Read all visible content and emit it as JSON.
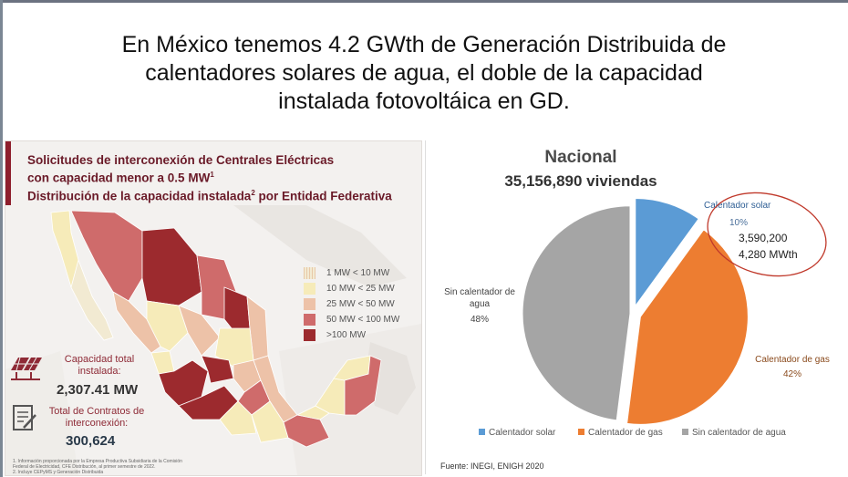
{
  "headline": {
    "line1": "En México tenemos 4.2 GWth de Generación Distribuida de",
    "line2": "calentadores solares de agua, el doble de la capacidad",
    "line3": "instalada fotovoltáica en GD."
  },
  "left_panel": {
    "title_line1": "Solicitudes de interconexión de Centrales Eléctricas",
    "title_line2": "con capacidad menor a 0.5 MW",
    "title_line2_sup": "1",
    "title_line3_a": "Distribución de la capacidad instalada",
    "title_line3_sup": "2",
    "title_line3_b": " por Entidad Federativa",
    "legend": [
      {
        "label": "1 MW < 10 MW",
        "color": "#f2ead2"
      },
      {
        "label": "10 MW < 25 MW",
        "color": "#f6ebb9"
      },
      {
        "label": "25 MW < 50 MW",
        "color": "#edc2a8"
      },
      {
        "label": "50 MW < 100 MW",
        "color": "#cf6b6b"
      },
      {
        "label": ">100 MW",
        "color": "#9c2a2e"
      }
    ],
    "capacity_label": "Capacidad total instalada:",
    "capacity_value": "2,307.41  MW",
    "contracts_label": "Total de Contratos de interconexión:",
    "contracts_value": "300,624",
    "footnote1": "1. Información proporcionada por la Empresa Productiva Subsidiaria de la Comisión",
    "footnote2": "Federal de Electricidad, CFE Distribución, al primer semestre de 2022.",
    "footnote3": "2. Incluye CEPyMS y Generación Distribuida"
  },
  "chart_data": {
    "type": "pie",
    "title": "Nacional",
    "subtitle": "35,156,890 viviendas",
    "slices": [
      {
        "name": "Calentador solar",
        "percent": 10,
        "color": "#5b9bd5",
        "label_pct": "10%"
      },
      {
        "name": "Calentador de gas",
        "percent": 42,
        "color": "#ed7d31",
        "label_pct": "42%"
      },
      {
        "name": "Sin calentador de agua",
        "percent": 48,
        "color": "#a5a5a5",
        "label_pct": "48%"
      }
    ],
    "data_labels": {
      "solar_name": "Calentador solar",
      "solar_pct": "10%",
      "gas_name": "Calentador de gas",
      "gas_pct": "42%",
      "sin_line1": "Sin calentador de",
      "sin_line2": "agua",
      "sin_pct": "48%"
    },
    "annotation": {
      "line1": "3,590,200",
      "line2": "4,280 MWth",
      "highlight_color": "#c0392b"
    },
    "legend": [
      "Calentador solar",
      "Calentador de gas",
      "Sin calentador de agua"
    ],
    "legend_position": "bottom",
    "source": "Fuente: INEGI, ENIGH 2020"
  }
}
